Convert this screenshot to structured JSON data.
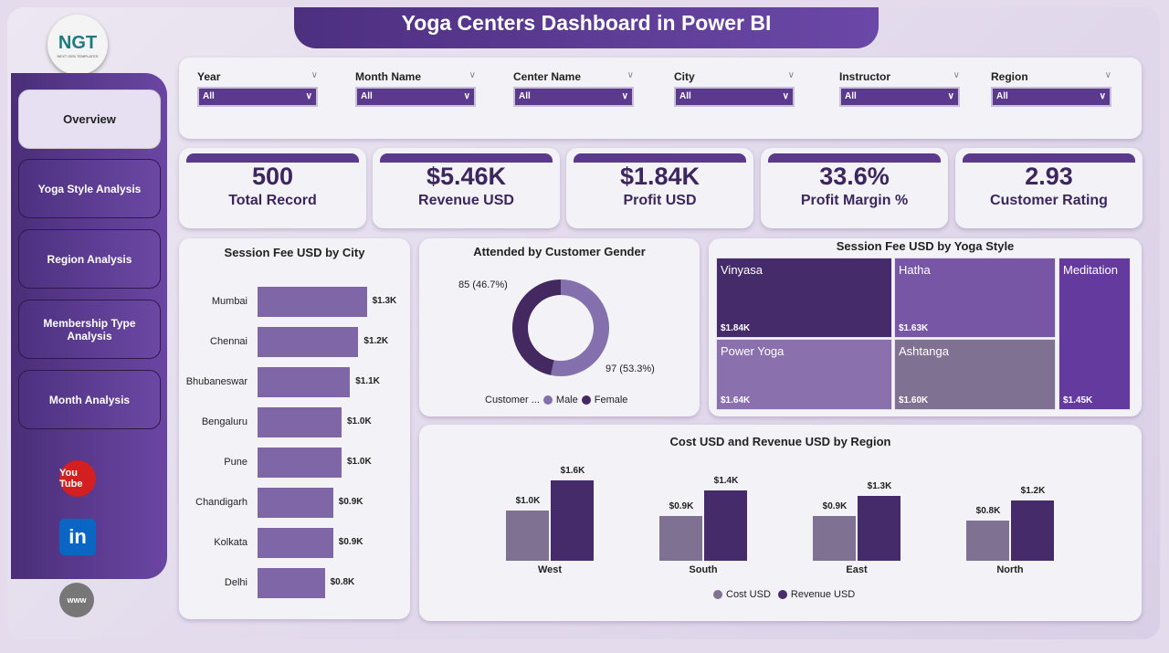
{
  "title": "Yoga Centers Dashboard in Power BI",
  "logo": {
    "text": "NGT",
    "sub": "NEXT GEN TEMPLATES"
  },
  "nav": [
    {
      "label": "Overview",
      "active": true
    },
    {
      "label": "Yoga Style Analysis"
    },
    {
      "label": "Region Analysis"
    },
    {
      "label": "Membership Type Analysis"
    },
    {
      "label": "Month Analysis"
    }
  ],
  "social": [
    {
      "icon": "youtube-icon",
      "label": "You Tube"
    },
    {
      "icon": "linkedin-icon",
      "label": "in"
    },
    {
      "icon": "globe-icon",
      "label": "www"
    }
  ],
  "filters": [
    {
      "label": "Year",
      "value": "All"
    },
    {
      "label": "Month Name",
      "value": "All"
    },
    {
      "label": "Center Name",
      "value": "All"
    },
    {
      "label": "City",
      "value": "All"
    },
    {
      "label": "Instructor",
      "value": "All"
    },
    {
      "label": "Region",
      "value": "All"
    }
  ],
  "kpis": [
    {
      "value": "500",
      "label": "Total Record"
    },
    {
      "value": "$5.46K",
      "label": "Revenue USD"
    },
    {
      "value": "$1.84K",
      "label": "Profit USD"
    },
    {
      "value": "33.6%",
      "label": "Profit Margin %"
    },
    {
      "value": "2.93",
      "label": "Customer Rating"
    }
  ],
  "chart_data": [
    {
      "type": "bar",
      "orientation": "horizontal",
      "title": "Session Fee USD by City",
      "categories": [
        "Mumbai",
        "Chennai",
        "Bhubaneswar",
        "Bengaluru",
        "Pune",
        "Chandigarh",
        "Kolkata",
        "Delhi"
      ],
      "values": [
        1.3,
        1.2,
        1.1,
        1.0,
        1.0,
        0.9,
        0.9,
        0.8
      ],
      "labels": [
        "$1.3K",
        "$1.2K",
        "$1.1K",
        "$1.0K",
        "$1.0K",
        "$0.9K",
        "$0.9K",
        "$0.8K"
      ],
      "unit": "K USD",
      "color": "#7f66a6"
    },
    {
      "type": "pie",
      "variant": "donut",
      "title": "Attended by Customer Gender",
      "legend_title": "Customer ...",
      "slices": [
        {
          "name": "Male",
          "value": 97,
          "label": "97 (53.3%)",
          "color": "#8470ac"
        },
        {
          "name": "Female",
          "value": 85,
          "label": "85 (46.7%)",
          "color": "#43295f"
        }
      ]
    },
    {
      "type": "treemap",
      "title": "Session Fee USD by Yoga Style",
      "items": [
        {
          "name": "Vinyasa",
          "value": 1.84,
          "label": "$1.84K",
          "color": "#452b6a"
        },
        {
          "name": "Hatha",
          "value": 1.63,
          "label": "$1.63K",
          "color": "#7757a5"
        },
        {
          "name": "Power Yoga",
          "value": 1.64,
          "label": "$1.64K",
          "color": "#8a71ad"
        },
        {
          "name": "Ashtanga",
          "value": 1.6,
          "label": "$1.60K",
          "color": "#7f7192"
        },
        {
          "name": "Meditation",
          "value": 1.45,
          "label": "$1.45K",
          "color": "#643a9e"
        }
      ]
    },
    {
      "type": "bar",
      "title": "Cost USD and Revenue USD by Region",
      "categories": [
        "West",
        "South",
        "East",
        "North"
      ],
      "series": [
        {
          "name": "Cost USD",
          "values": [
            1.0,
            0.9,
            0.9,
            0.8
          ],
          "labels": [
            "$1.0K",
            "$0.9K",
            "$0.9K",
            "$0.8K"
          ],
          "color": "#7f7192"
        },
        {
          "name": "Revenue USD",
          "values": [
            1.6,
            1.4,
            1.3,
            1.2
          ],
          "labels": [
            "$1.6K",
            "$1.4K",
            "$1.3K",
            "$1.2K"
          ],
          "color": "#452b6a"
        }
      ],
      "unit": "K USD",
      "legend": "bottom"
    }
  ]
}
